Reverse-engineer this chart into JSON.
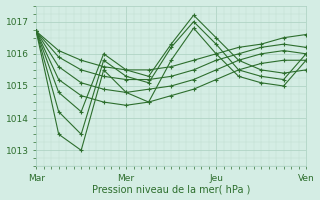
{
  "xlabel": "Pression niveau de la mer( hPa )",
  "ylim": [
    1012.5,
    1017.5
  ],
  "yticks": [
    1013,
    1014,
    1015,
    1016,
    1017
  ],
  "xlim": [
    0,
    72
  ],
  "xtick_positions": [
    0,
    24,
    48,
    72
  ],
  "xtick_labels": [
    "Mar",
    "Mer",
    "Jeu",
    "Ven"
  ],
  "bg_color": "#d4ede4",
  "line_color": "#2d6e2d",
  "grid_major_color": "#aad0c0",
  "grid_minor_color": "#c0ddd0",
  "series": [
    [
      1016.7,
      1016.1,
      1015.8,
      1015.6,
      1015.5,
      1015.5,
      1015.6,
      1015.8,
      1016.0,
      1016.2,
      1016.3,
      1016.5,
      1016.6
    ],
    [
      1016.7,
      1015.9,
      1015.5,
      1015.3,
      1015.2,
      1015.2,
      1015.3,
      1015.5,
      1015.8,
      1016.0,
      1016.2,
      1016.3,
      1016.2
    ],
    [
      1016.7,
      1015.6,
      1015.1,
      1014.9,
      1014.8,
      1014.9,
      1015.0,
      1015.2,
      1015.5,
      1015.8,
      1016.0,
      1016.1,
      1016.0
    ],
    [
      1016.7,
      1015.2,
      1014.7,
      1014.5,
      1014.4,
      1014.5,
      1014.7,
      1014.9,
      1015.2,
      1015.5,
      1015.7,
      1015.8,
      1015.8
    ],
    [
      1016.7,
      1014.8,
      1014.2,
      1016.0,
      1015.5,
      1015.3,
      1016.3,
      1017.2,
      1016.5,
      1015.8,
      1015.5,
      1015.4,
      1015.5
    ],
    [
      1016.7,
      1014.2,
      1013.5,
      1015.8,
      1015.3,
      1015.1,
      1016.2,
      1017.0,
      1016.3,
      1015.5,
      1015.3,
      1015.2,
      1016.0
    ],
    [
      1016.7,
      1013.5,
      1013.0,
      1015.5,
      1014.8,
      1014.5,
      1015.8,
      1016.8,
      1016.0,
      1015.3,
      1015.1,
      1015.0,
      1015.8
    ]
  ],
  "x_positions": [
    0,
    6,
    12,
    18,
    24,
    30,
    36,
    42,
    48,
    54,
    60,
    66,
    72
  ]
}
